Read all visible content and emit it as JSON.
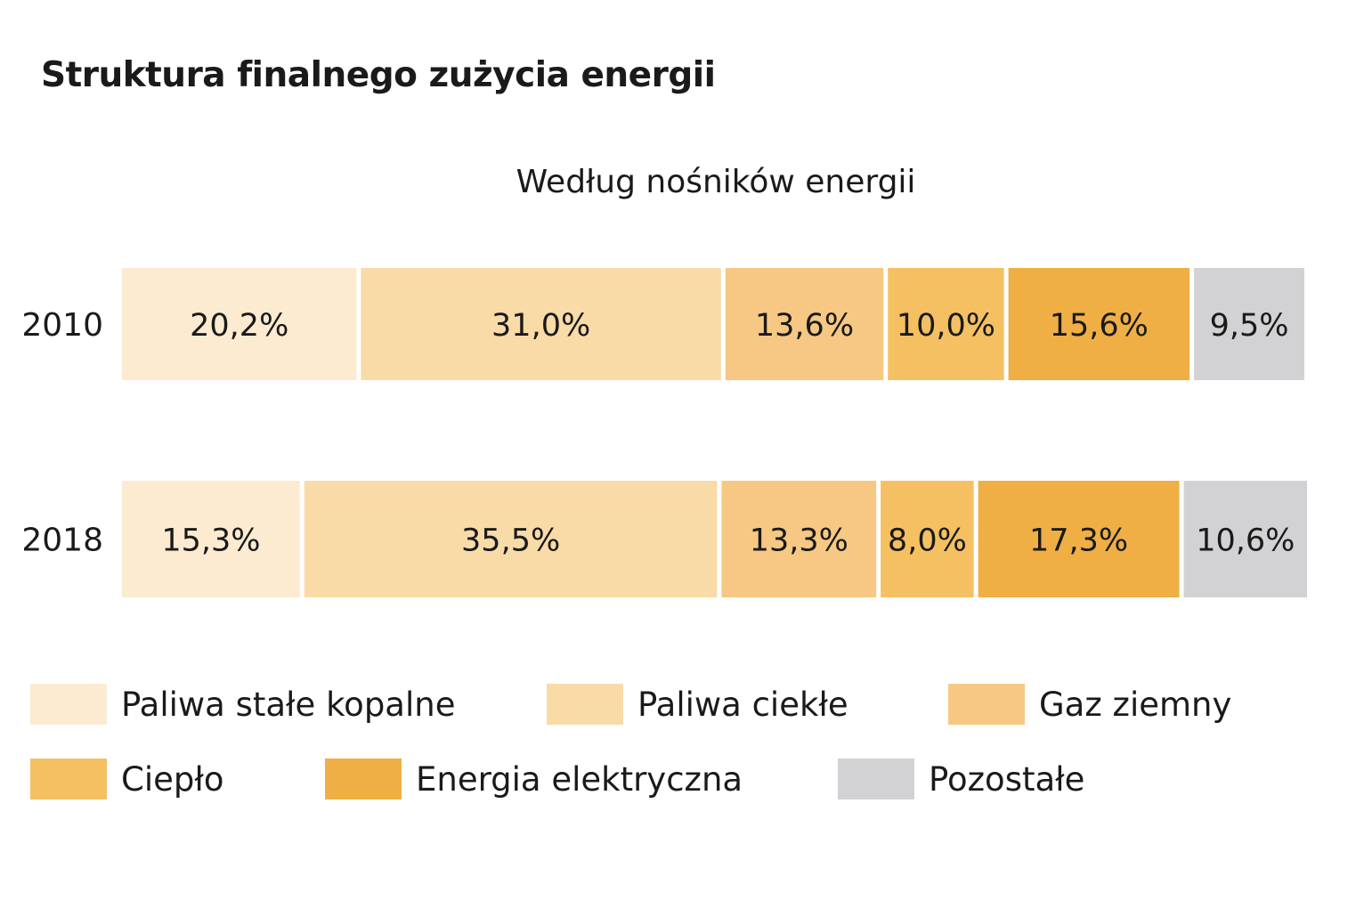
{
  "chart_data": {
    "type": "bar",
    "orientation": "horizontal",
    "stacked": true,
    "title": "Struktura finalnego zużycia energii",
    "subtitle": "Według nośników energii",
    "categories": [
      "2010",
      "2018"
    ],
    "series": [
      {
        "name": "Paliwa stałe kopalne",
        "color": "#fcebd0",
        "values": [
          20.2,
          15.3
        ],
        "labels": [
          "20,2%",
          "15,3%"
        ]
      },
      {
        "name": "Paliwa ciekłe",
        "color": "#f9dba8",
        "values": [
          31.0,
          35.5
        ],
        "labels": [
          "31,0%",
          "35,5%"
        ]
      },
      {
        "name": "Gaz ziemny",
        "color": "#f6c883",
        "values": [
          13.6,
          13.3
        ],
        "labels": [
          "13,6%",
          "13,3%"
        ]
      },
      {
        "name": "Ciepło",
        "color": "#f4c062",
        "values": [
          10.0,
          8.0
        ],
        "labels": [
          "10,0%",
          "8,0%"
        ]
      },
      {
        "name": "Energia elektryczna",
        "color": "#efaf45",
        "values": [
          15.6,
          17.3
        ],
        "labels": [
          "15,6%",
          "17,3%"
        ]
      },
      {
        "name": "Pozostałe",
        "color": "#d2d2d4",
        "values": [
          9.5,
          10.6
        ],
        "labels": [
          "9,5%",
          "10,6%"
        ]
      }
    ]
  }
}
